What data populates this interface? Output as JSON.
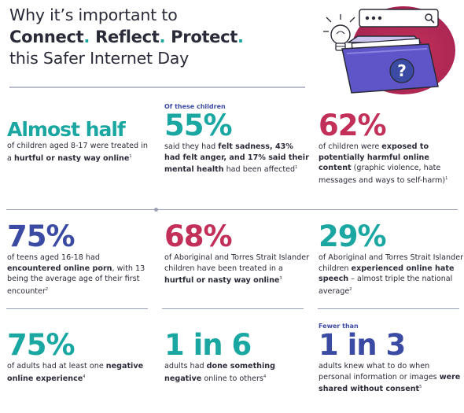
{
  "title": {
    "line1": "Why it’s important to",
    "connect": "Connect",
    "reflect": "Reflect",
    "protect": "Protect",
    "period": ".",
    "line3": "this Safer Internet Day"
  },
  "illustration": {
    "icons": [
      "browser-search-bar-icon",
      "lightbulb-icon",
      "folder-icon",
      "question-mark-icon"
    ]
  },
  "stats": [
    {
      "pre": "",
      "big": "Almost half",
      "desc": [
        {
          "t": "of children aged 8-17 were treated in a ",
          "b": false
        },
        {
          "t": "hurtful or nasty way online",
          "b": true
        },
        {
          "t": "1",
          "sup": true
        }
      ]
    },
    {
      "pre": "Of these children",
      "big": "55%",
      "desc": [
        {
          "t": "said they had ",
          "b": false
        },
        {
          "t": "felt sadness, 43% had felt anger, and 17% said their mental health",
          "b": true
        },
        {
          "t": " had been affected",
          "b": false
        },
        {
          "t": "1",
          "sup": true
        }
      ]
    },
    {
      "pre": "",
      "big": "62%",
      "desc": [
        {
          "t": "of children were ",
          "b": false
        },
        {
          "t": "exposed to potentially harmful online content",
          "b": true
        },
        {
          "t": " (graphic violence, hate messages and ways to self-harm)",
          "b": false
        },
        {
          "t": "1",
          "sup": true
        }
      ]
    },
    {
      "pre": "",
      "big": "75%",
      "desc": [
        {
          "t": "of teens aged 16-18 had ",
          "b": false
        },
        {
          "t": "encountered online porn",
          "b": true
        },
        {
          "t": ", with 13 being the average age of their first encounter",
          "b": false
        },
        {
          "t": "2",
          "sup": true
        }
      ]
    },
    {
      "pre": "",
      "big": "68%",
      "desc": [
        {
          "t": "of Aboriginal and Torres Strait Islander children have been treated in a ",
          "b": false
        },
        {
          "t": "hurtful or nasty way online",
          "b": true
        },
        {
          "t": "3",
          "sup": true
        }
      ]
    },
    {
      "pre": "",
      "big": "29%",
      "desc": [
        {
          "t": "of Aboriginal and Torres Strait Islander children ",
          "b": false
        },
        {
          "t": "experienced online hate speech",
          "b": true
        },
        {
          "t": " – almost triple the national average",
          "b": false
        },
        {
          "t": "2",
          "sup": true
        }
      ]
    },
    {
      "pre": "",
      "big": "75%",
      "desc": [
        {
          "t": "of adults had at least one ",
          "b": false
        },
        {
          "t": "negative online experience",
          "b": true
        },
        {
          "t": "4",
          "sup": true
        }
      ]
    },
    {
      "pre": "",
      "big": "1 in 6",
      "desc": [
        {
          "t": "adults had ",
          "b": false
        },
        {
          "t": "done something negative",
          "b": true
        },
        {
          "t": " online to others",
          "b": false
        },
        {
          "t": "4",
          "sup": true
        }
      ]
    },
    {
      "pre": "Fewer than",
      "big": "1 in 3",
      "desc": [
        {
          "t": "adults knew what to do when personal information or images ",
          "b": false
        },
        {
          "t": "were shared without consent",
          "b": true
        },
        {
          "t": "5",
          "sup": true
        }
      ]
    }
  ],
  "colors": {
    "teal": "#1aa7a2",
    "crimson": "#c2305a",
    "indigo": "#3b4aa3",
    "text": "#2a2b38",
    "rule": "#9aa0b5"
  }
}
